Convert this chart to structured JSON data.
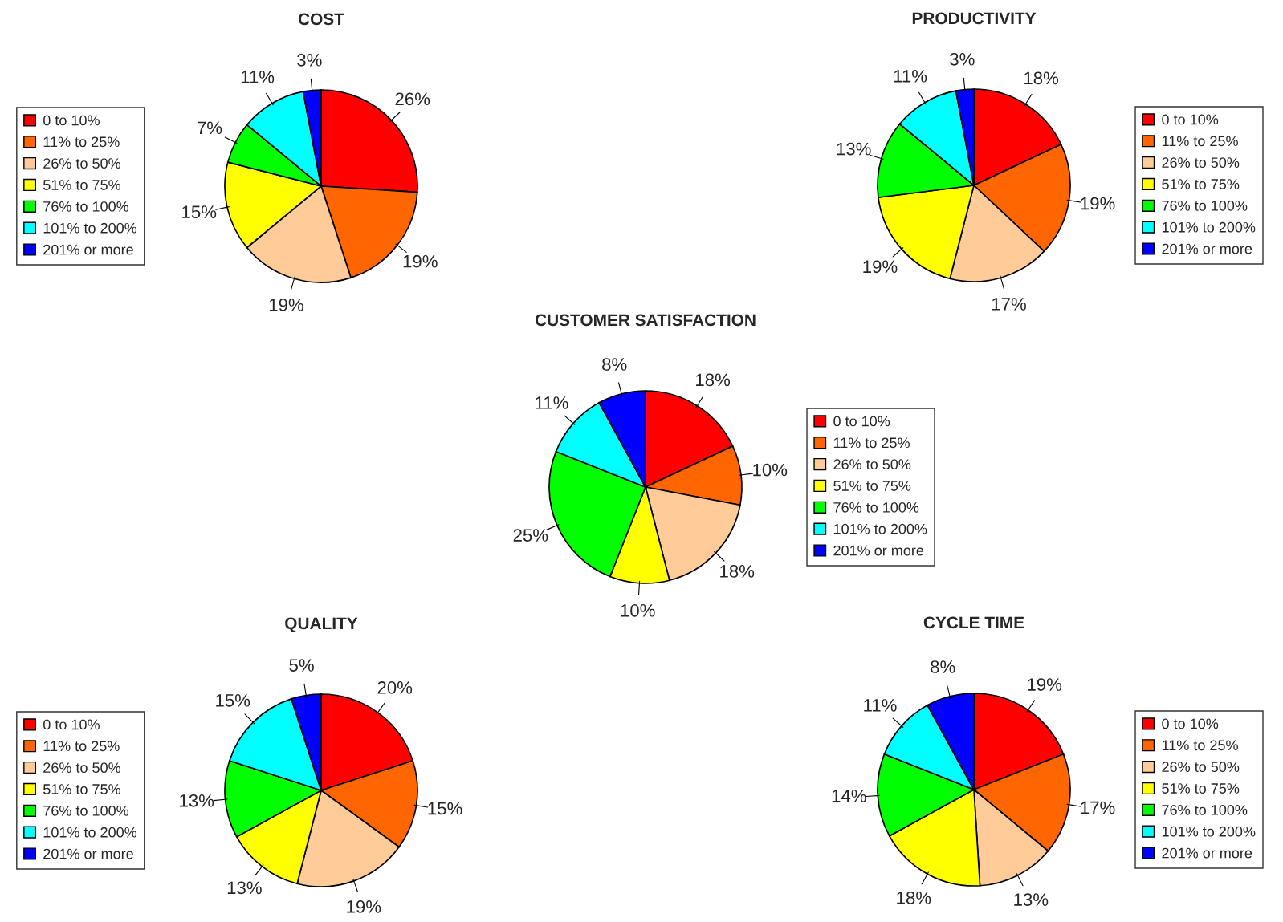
{
  "chart_data": [
    {
      "type": "pie",
      "title": "COST",
      "categories": [
        "0 to 10%",
        "11% to 25%",
        "26% to 50%",
        "51% to 75%",
        "76% to 100%",
        "101% to 200%",
        "201% or more"
      ],
      "values": [
        26,
        19,
        19,
        15,
        7,
        11,
        3
      ],
      "value_labels": [
        "26%",
        "19%",
        "19%",
        "15%",
        "7%",
        "11%",
        "3%"
      ],
      "colors": [
        "#ff0000",
        "#ff6600",
        "#ffcc99",
        "#ffff00",
        "#00ff00",
        "#00ffff",
        "#0000ff"
      ],
      "legend": "left"
    },
    {
      "type": "pie",
      "title": "PRODUCTIVITY",
      "categories": [
        "0 to 10%",
        "11% to 25%",
        "26% to 50%",
        "51% to 75%",
        "76% to 100%",
        "101% to 200%",
        "201% or more"
      ],
      "values": [
        18,
        19,
        17,
        19,
        13,
        11,
        3
      ],
      "value_labels": [
        "18%",
        "19%",
        "17%",
        "19%",
        "13%",
        "11%",
        "3%"
      ],
      "colors": [
        "#ff0000",
        "#ff6600",
        "#ffcc99",
        "#ffff00",
        "#00ff00",
        "#00ffff",
        "#0000ff"
      ],
      "legend": "right"
    },
    {
      "type": "pie",
      "title": "CUSTOMER SATISFACTION",
      "categories": [
        "0 to 10%",
        "11% to 25%",
        "26% to 50%",
        "51% to 75%",
        "76% to 100%",
        "101% to 200%",
        "201% or more"
      ],
      "values": [
        18,
        10,
        18,
        10,
        25,
        11,
        8
      ],
      "value_labels": [
        "18%",
        "10%",
        "18%",
        "10%",
        "25%",
        "11%",
        "8%"
      ],
      "colors": [
        "#ff0000",
        "#ff6600",
        "#ffcc99",
        "#ffff00",
        "#00ff00",
        "#00ffff",
        "#0000ff"
      ],
      "legend": "right"
    },
    {
      "type": "pie",
      "title": "QUALITY",
      "categories": [
        "0 to 10%",
        "11% to 25%",
        "26% to 50%",
        "51% to 75%",
        "76% to 100%",
        "101% to 200%",
        "201% or more"
      ],
      "values": [
        20,
        15,
        19,
        13,
        13,
        15,
        5
      ],
      "value_labels": [
        "20%",
        "15%",
        "19%",
        "13%",
        "13%",
        "15%",
        "5%"
      ],
      "colors": [
        "#ff0000",
        "#ff6600",
        "#ffcc99",
        "#ffff00",
        "#00ff00",
        "#00ffff",
        "#0000ff"
      ],
      "legend": "left"
    },
    {
      "type": "pie",
      "title": "CYCLE TIME",
      "categories": [
        "0 to 10%",
        "11% to 25%",
        "26% to 50%",
        "51% to 75%",
        "76% to 100%",
        "101% to 200%",
        "201% or more"
      ],
      "values": [
        19,
        17,
        13,
        18,
        14,
        11,
        8
      ],
      "value_labels": [
        "19%",
        "17%",
        "13%",
        "18%",
        "14%",
        "11%",
        "8%"
      ],
      "colors": [
        "#ff0000",
        "#ff6600",
        "#ffcc99",
        "#ffff00",
        "#00ff00",
        "#00ffff",
        "#0000ff"
      ],
      "legend": "right"
    }
  ]
}
